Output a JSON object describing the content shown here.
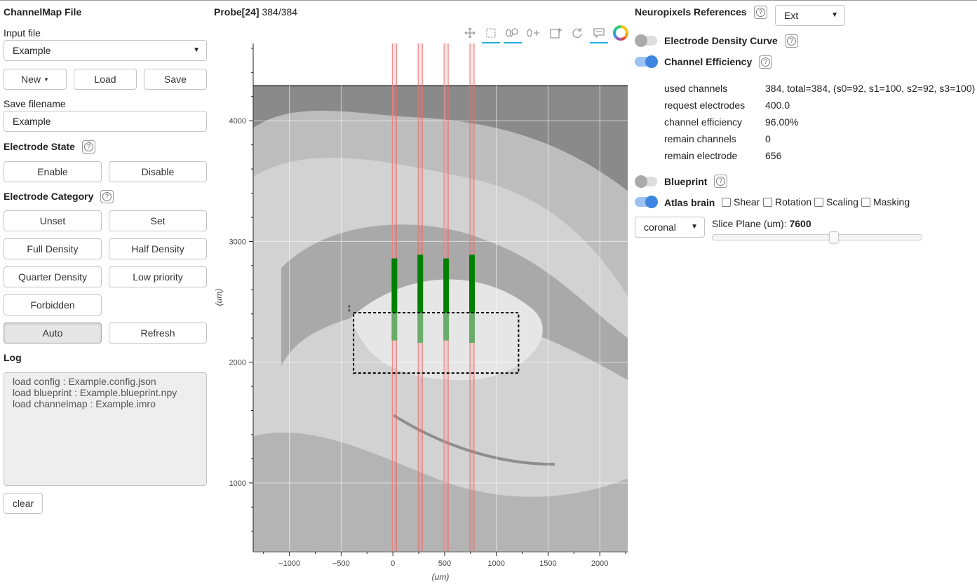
{
  "left": {
    "title": "ChannelMap File",
    "input_file_label": "Input file",
    "input_file_value": "Example",
    "new_label": "New",
    "load_label": "Load",
    "save_label": "Save",
    "save_filename_label": "Save filename",
    "save_filename_value": "Example",
    "electrode_state_title": "Electrode State",
    "enable_label": "Enable",
    "disable_label": "Disable",
    "electrode_category_title": "Electrode Category",
    "unset_label": "Unset",
    "set_label": "Set",
    "full_density_label": "Full Density",
    "half_density_label": "Half Density",
    "quarter_density_label": "Quarter Density",
    "low_priority_label": "Low priority",
    "forbidden_label": "Forbidden",
    "auto_label": "Auto",
    "refresh_label": "Refresh",
    "log_title": "Log",
    "log_lines": [
      "load config : Example.config.json",
      "load blueprint : Example.blueprint.npy",
      "load channelmap : Example.imro"
    ],
    "clear_label": "clear"
  },
  "plot": {
    "title_bold": "Probe[24]",
    "title_rest": "384/384",
    "xlabel": "(um)",
    "ylabel": "(um)",
    "x_ticks": [
      "−1000",
      "−500",
      "0",
      "500",
      "1000",
      "1500",
      "2000"
    ],
    "y_ticks": [
      "4000",
      "3000",
      "2000",
      "1000"
    ]
  },
  "chart_data": {
    "type": "scatter",
    "xlabel": "(um)",
    "ylabel": "(um)",
    "xlim": [
      -1350,
      2270
    ],
    "ylim": [
      430,
      4640
    ],
    "x_ticks": [
      -1000,
      -500,
      0,
      500,
      1000,
      1500,
      2000
    ],
    "y_ticks": [
      1000,
      2000,
      3000,
      4000
    ],
    "atlas_top_y": 4290,
    "shanks": [
      {
        "x": 15,
        "y_start": 2180,
        "y_end": 2860
      },
      {
        "x": 265,
        "y_start": 2160,
        "y_end": 2890
      },
      {
        "x": 515,
        "y_start": 2180,
        "y_end": 2860
      },
      {
        "x": 765,
        "y_start": 2160,
        "y_end": 2890
      }
    ],
    "shank_tracks_x": [
      15,
      265,
      515,
      765
    ],
    "selection_box": {
      "x0": -380,
      "x1": 1215,
      "y0": 1910,
      "y1": 2410
    },
    "colors": {
      "selected_electrode": "#008000",
      "dim_electrode": "#6aac6a",
      "track": "#e87070",
      "selection": "#000000"
    }
  },
  "right": {
    "np_refs_title": "Neuropixels References",
    "np_refs_value": "Ext",
    "density_curve_label": "Electrode Density Curve",
    "channel_efficiency_label": "Channel Efficiency",
    "efficiency_rows": [
      {
        "key": "used channels",
        "value": "384, total=384, (s0=92, s1=100, s2=92, s3=100)"
      },
      {
        "key": "request electrodes",
        "value": "400.0"
      },
      {
        "key": "channel efficiency",
        "value": "96.00%"
      },
      {
        "key": "remain channels",
        "value": "0"
      },
      {
        "key": "remain electrode",
        "value": "656"
      }
    ],
    "blueprint_label": "Blueprint",
    "atlas_brain_label": "Atlas brain",
    "shear_label": "Shear",
    "rotation_label": "Rotation",
    "scaling_label": "Scaling",
    "masking_label": "Masking",
    "plane_value": "coronal",
    "slice_plane_label": "Slice Plane (um): ",
    "slice_plane_value": "7600",
    "slice_plane_fraction": 0.575
  }
}
